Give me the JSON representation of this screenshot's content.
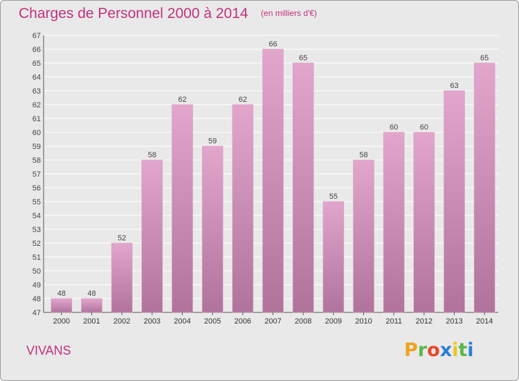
{
  "chart_data": {
    "type": "bar",
    "title": "Charges de Personnel 2000 à 2014",
    "subtitle": "(en milliers d'€)",
    "categories": [
      "2000",
      "2001",
      "2002",
      "2003",
      "2004",
      "2005",
      "2006",
      "2007",
      "2008",
      "2009",
      "2010",
      "2011",
      "2012",
      "2013",
      "2014"
    ],
    "values": [
      48,
      48,
      52,
      58,
      62,
      59,
      62,
      66,
      65,
      55,
      58,
      60,
      60,
      63,
      65
    ],
    "ylim": [
      47,
      67
    ],
    "yticks": [
      47,
      48,
      49,
      50,
      51,
      52,
      53,
      54,
      55,
      56,
      57,
      58,
      59,
      60,
      61,
      62,
      63,
      64,
      65,
      66,
      67
    ],
    "grid": true,
    "bar_color_top": "#e2a6cd",
    "bar_color_bottom": "#b0739c"
  },
  "footer": {
    "commune": "VIVANS",
    "logo_letters": [
      "P",
      "r",
      "o",
      "x",
      "i",
      "t",
      "i"
    ],
    "logo_colors": [
      "#f0a21f",
      "#59b84b",
      "#e8462b",
      "#2a7fd4",
      "#f0c41f",
      "#59b84b",
      "#2a7fd4"
    ]
  }
}
